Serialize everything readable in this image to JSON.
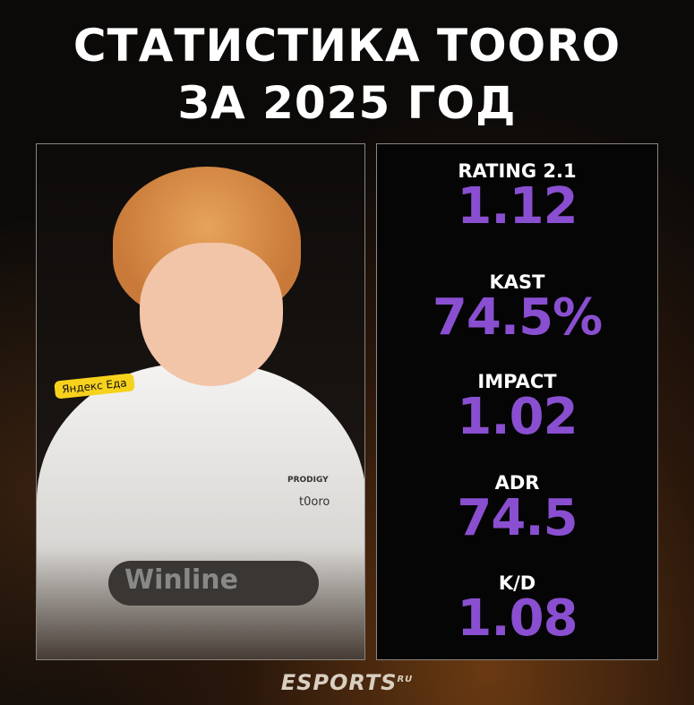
{
  "title": {
    "line1": "СТАТИСТИКА TOORO",
    "line2": "ЗА 2025 ГОД"
  },
  "photo": {
    "sponsor_patch": "Яндекс Еда",
    "team_logo": "PRODIGY",
    "jersey_name": "t0oro",
    "jersey_sponsor": "Winline"
  },
  "stats": [
    {
      "label": "RATING 2.1",
      "value": "1.12"
    },
    {
      "label": "KAST",
      "value": "74.5%"
    },
    {
      "label": "IMPACT",
      "value": "1.02"
    },
    {
      "label": "ADR",
      "value": "74.5"
    },
    {
      "label": "K/D",
      "value": "1.08"
    }
  ],
  "brand": {
    "name": "ESPORTS",
    "suffix": "RU"
  },
  "colors": {
    "accent": "#8a4fd0",
    "background": "#0c0a09"
  }
}
